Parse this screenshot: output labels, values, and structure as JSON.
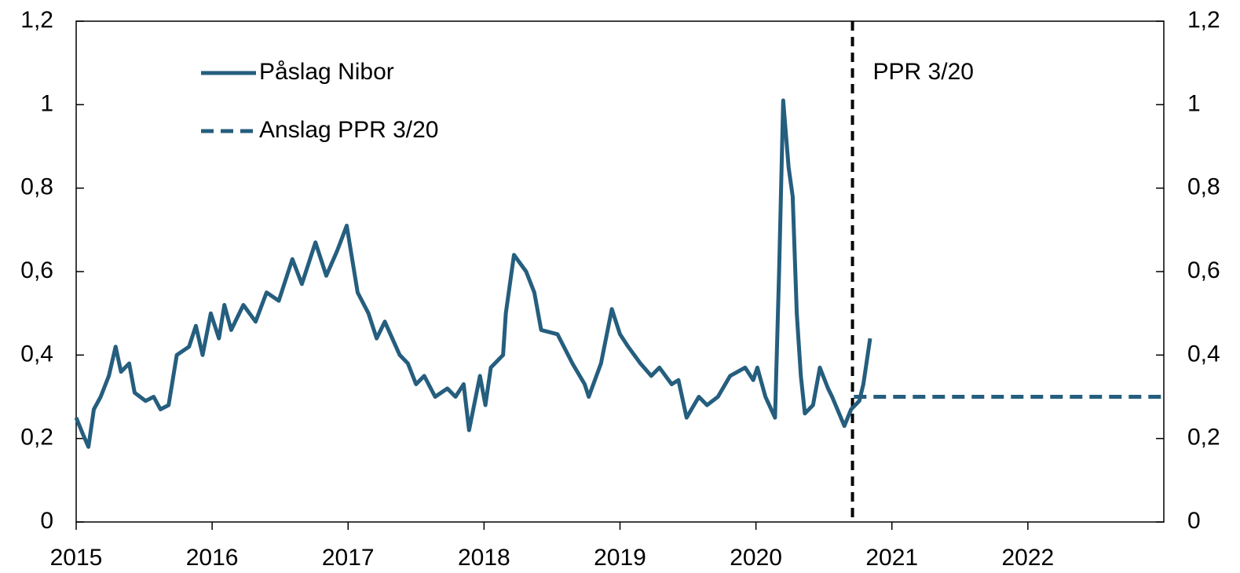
{
  "chart_data": {
    "type": "line",
    "xlim": [
      2015,
      2023
    ],
    "xticks": [
      2015,
      2016,
      2017,
      2018,
      2019,
      2020,
      2021,
      2022
    ],
    "ylim": [
      0,
      1.2
    ],
    "yticks": [
      0,
      {
        "value": 0.2,
        "label": "0,2"
      },
      {
        "value": 0.4,
        "label": "0,4"
      },
      {
        "value": 0.6,
        "label": "0,6"
      },
      {
        "value": 0.8,
        "label": "0,8"
      },
      1,
      {
        "value": 1.2,
        "label": "1,2"
      }
    ],
    "y2lim": [
      0,
      1.2
    ],
    "y2ticks": [
      0,
      {
        "value": 0.2,
        "label": "0,2"
      },
      {
        "value": 0.4,
        "label": "0,4"
      },
      {
        "value": 0.6,
        "label": "0,6"
      },
      {
        "value": 0.8,
        "label": "0,8"
      },
      1,
      {
        "value": 1.2,
        "label": "1,2"
      }
    ],
    "legend": "top-left",
    "series": [
      {
        "name": "Påslag Nibor",
        "color": "#255e7e",
        "style": "solid",
        "x": [
          2015.0,
          2015.05,
          2015.09,
          2015.13,
          2015.18,
          2015.24,
          2015.29,
          2015.33,
          2015.39,
          2015.43,
          2015.51,
          2015.57,
          2015.62,
          2015.68,
          2015.74,
          2015.83,
          2015.88,
          2015.93,
          2015.99,
          2016.05,
          2016.09,
          2016.14,
          2016.23,
          2016.32,
          2016.4,
          2016.49,
          2016.59,
          2016.66,
          2016.76,
          2016.84,
          2016.92,
          2016.99,
          2017.07,
          2017.15,
          2017.21,
          2017.27,
          2017.38,
          2017.44,
          2017.5,
          2017.56,
          2017.64,
          2017.73,
          2017.79,
          2017.85,
          2017.89,
          2017.97,
          2018.01,
          2018.05,
          2018.14,
          2018.16,
          2018.22,
          2018.31,
          2018.37,
          2018.42,
          2018.54,
          2018.65,
          2018.74,
          2018.77,
          2018.86,
          2018.94,
          2019.0,
          2019.06,
          2019.15,
          2019.23,
          2019.29,
          2019.38,
          2019.43,
          2019.49,
          2019.58,
          2019.64,
          2019.72,
          2019.81,
          2019.92,
          2019.98,
          2020.01,
          2020.07,
          2020.14,
          2020.17,
          2020.2,
          2020.24,
          2020.27,
          2020.3,
          2020.33,
          2020.36,
          2020.42,
          2020.47,
          2020.53,
          2020.56,
          2020.65,
          2020.7,
          2020.76,
          2020.79,
          2020.84
        ],
        "values": [
          0.25,
          0.21,
          0.18,
          0.27,
          0.3,
          0.35,
          0.42,
          0.36,
          0.38,
          0.31,
          0.29,
          0.3,
          0.27,
          0.28,
          0.4,
          0.42,
          0.47,
          0.4,
          0.5,
          0.44,
          0.52,
          0.46,
          0.52,
          0.48,
          0.55,
          0.53,
          0.63,
          0.57,
          0.67,
          0.59,
          0.65,
          0.71,
          0.55,
          0.5,
          0.44,
          0.48,
          0.4,
          0.38,
          0.33,
          0.35,
          0.3,
          0.32,
          0.3,
          0.33,
          0.22,
          0.35,
          0.28,
          0.37,
          0.4,
          0.5,
          0.64,
          0.6,
          0.55,
          0.46,
          0.45,
          0.38,
          0.33,
          0.3,
          0.38,
          0.51,
          0.45,
          0.42,
          0.38,
          0.35,
          0.37,
          0.33,
          0.34,
          0.25,
          0.3,
          0.28,
          0.3,
          0.35,
          0.37,
          0.34,
          0.37,
          0.3,
          0.25,
          0.6,
          1.01,
          0.85,
          0.78,
          0.5,
          0.35,
          0.26,
          0.28,
          0.37,
          0.32,
          0.3,
          0.23,
          0.27,
          0.29,
          0.33,
          0.44
        ]
      },
      {
        "name": "Anslag PPR 3/20",
        "color": "#255e7e",
        "style": "dashed",
        "x": [
          2020.72,
          2023.0
        ],
        "values": [
          0.3,
          0.3
        ]
      }
    ],
    "annotations": [
      {
        "text": "PPR 3/20",
        "x": 2020.71
      }
    ]
  }
}
